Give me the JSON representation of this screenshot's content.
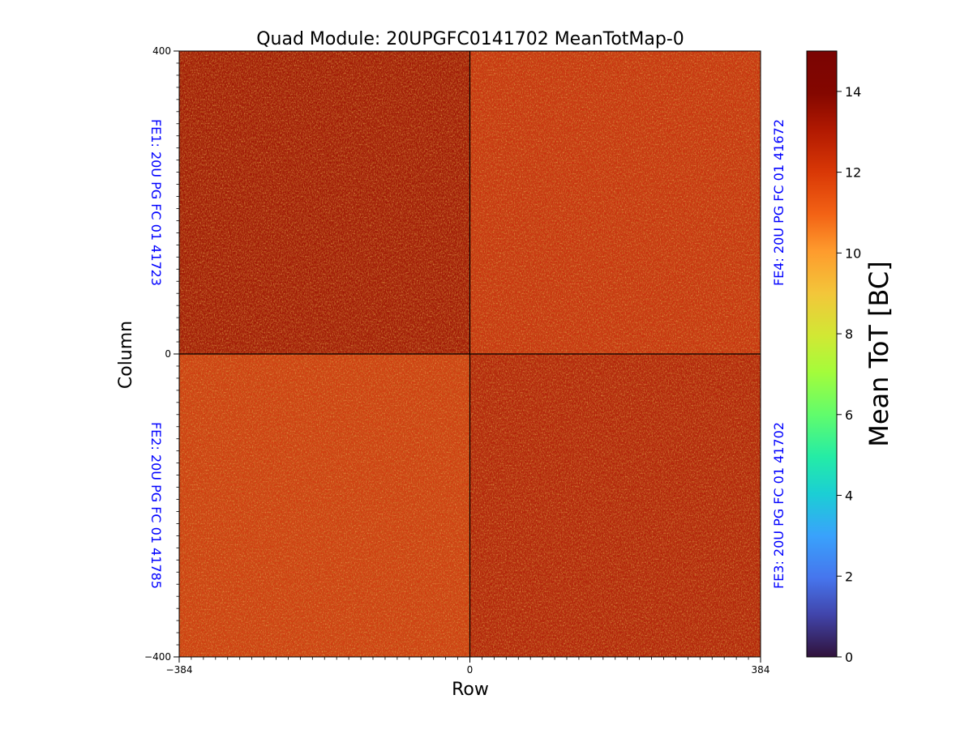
{
  "chart_data": {
    "type": "heatmap",
    "title": "Quad Module: 20UPGFC0141702 MeanTotMap-0",
    "xlabel": "Row",
    "ylabel": "Column",
    "xlim": [
      -384,
      384
    ],
    "ylim": [
      -400,
      400
    ],
    "x_ticks": [
      {
        "value": -384,
        "label": "−384"
      },
      {
        "value": 0,
        "label": "0"
      },
      {
        "value": 384,
        "label": "384"
      }
    ],
    "y_ticks": [
      {
        "value": 400,
        "label": "400"
      },
      {
        "value": 0,
        "label": "0"
      },
      {
        "value": -400,
        "label": "−400"
      }
    ],
    "colormap": "turbo",
    "colorbar": {
      "label": "Mean ToT [BC]",
      "range": [
        0,
        15
      ],
      "ticks": [
        {
          "value": 0,
          "label": "0"
        },
        {
          "value": 2,
          "label": "2"
        },
        {
          "value": 4,
          "label": "4"
        },
        {
          "value": 6,
          "label": "6"
        },
        {
          "value": 8,
          "label": "8"
        },
        {
          "value": 10,
          "label": "10"
        },
        {
          "value": 12,
          "label": "12"
        },
        {
          "value": 14,
          "label": "14"
        }
      ]
    },
    "quadrants": [
      {
        "label": "FE1: 20U PG FC 01 41723",
        "x_range": [
          -384,
          0
        ],
        "y_range": [
          0,
          400
        ],
        "approx_mean_tot": 14.5,
        "color": "#a01806"
      },
      {
        "label": "FE4: 20U PG FC 01 41672",
        "x_range": [
          0,
          384
        ],
        "y_range": [
          0,
          400
        ],
        "approx_mean_tot": 13.5,
        "color": "#c8320f"
      },
      {
        "label": "FE2: 20U PG FC 01 41785",
        "x_range": [
          -384,
          0
        ],
        "y_range": [
          -400,
          0
        ],
        "approx_mean_tot": 13.2,
        "color": "#cf3d11"
      },
      {
        "label": "FE3: 20U PG FC 01 41702",
        "x_range": [
          0,
          384
        ],
        "y_range": [
          -400,
          0
        ],
        "approx_mean_tot": 14.0,
        "color": "#b2220a"
      }
    ]
  }
}
